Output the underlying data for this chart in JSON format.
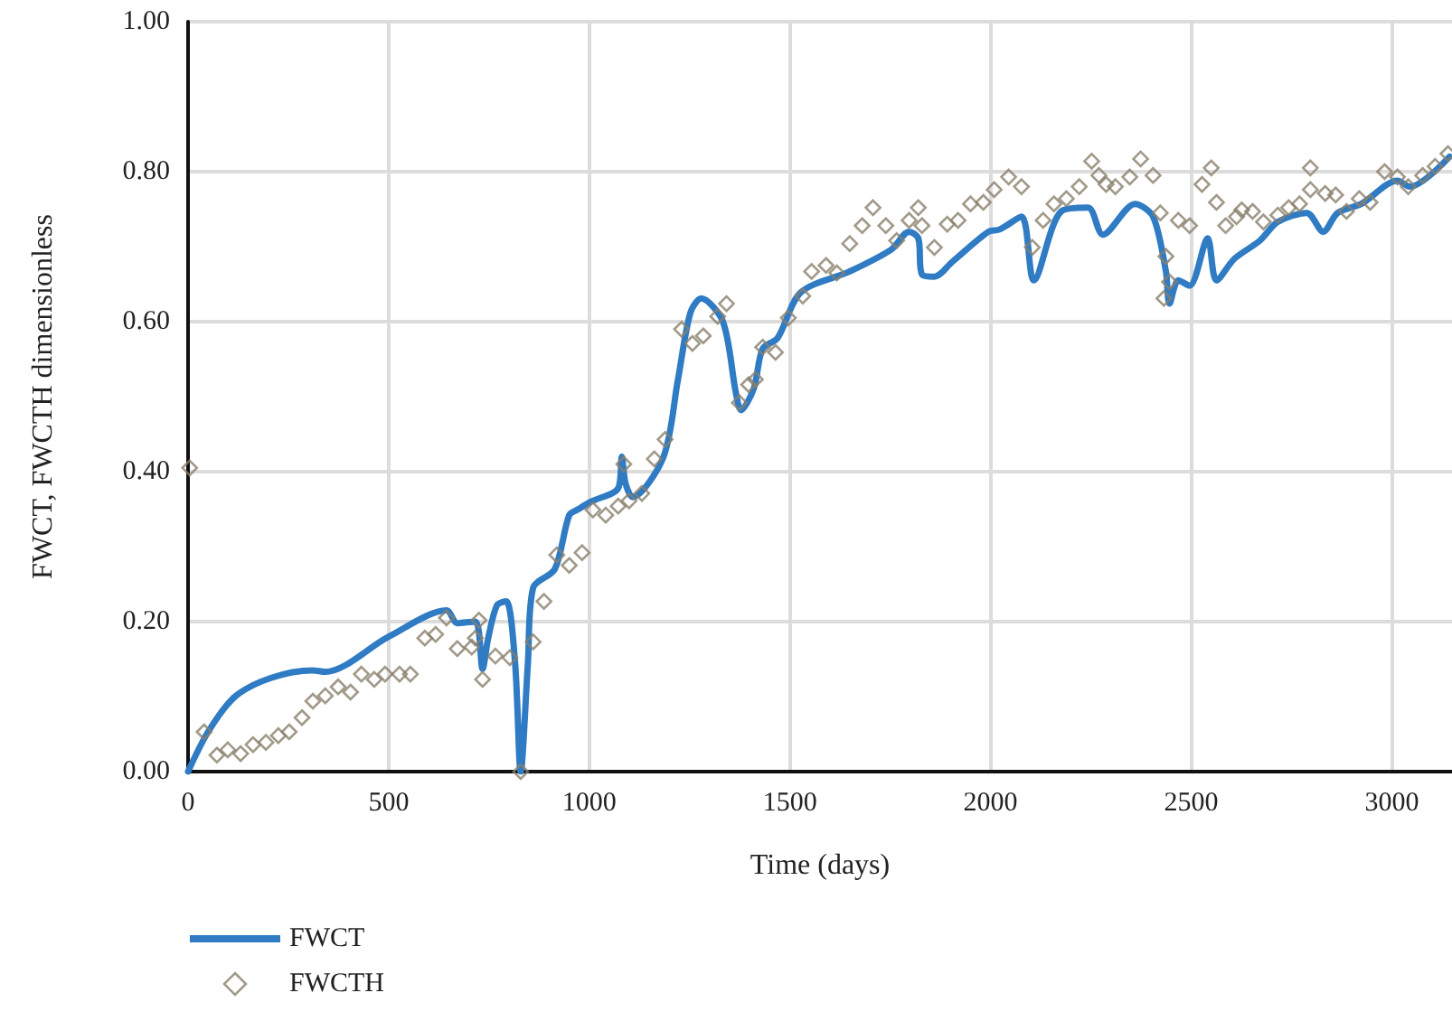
{
  "chart_data": {
    "type": "line",
    "xlabel": "Time (days)",
    "ylabel": "FWCT, FWCTH dimensionless",
    "xlim": [
      0,
      3150
    ],
    "xticks": [
      0,
      500,
      1000,
      1500,
      2000,
      2500,
      3000
    ],
    "ylim": [
      0,
      1
    ],
    "yticks": [
      {
        "value": 0,
        "label": "0.00"
      },
      {
        "value": 0.2,
        "label": "0.20"
      },
      {
        "value": 0.4,
        "label": "0.40"
      },
      {
        "value": 0.6,
        "label": "0.60"
      },
      {
        "value": 0.8,
        "label": "0.80"
      },
      {
        "value": 1,
        "label": "1.00"
      }
    ],
    "grid": true,
    "legend": "bottom left",
    "series": [
      {
        "name": "FWCT",
        "color": "#2f7bc4",
        "marker": "none",
        "line_style": "solid",
        "x": [
          0,
          50,
          117,
          207,
          310,
          342,
          500,
          644,
          671,
          716,
          734,
          748,
          770,
          793,
          815,
          829,
          847,
          860,
          914,
          950,
          973,
          1004,
          1072,
          1081,
          1090,
          1108,
          1185,
          1221,
          1252,
          1279,
          1333,
          1365,
          1378,
          1410,
          1432,
          1469,
          1527,
          1649,
          1752,
          1797,
          1820,
          1829,
          1860,
          1905,
          1995,
          2023,
          2077,
          2108,
          2176,
          2243,
          2280,
          2360,
          2405,
          2437,
          2446,
          2468,
          2496,
          2541,
          2563,
          2608,
          2671,
          2716,
          2788,
          2829,
          2865,
          2924,
          3014,
          3045,
          3144
        ],
        "values": [
          0,
          0.053,
          0.1,
          0.125,
          0.135,
          0.133,
          0.18,
          0.215,
          0.198,
          0.2,
          0.137,
          0.178,
          0.222,
          0.227,
          0.145,
          0,
          0.145,
          0.245,
          0.27,
          0.342,
          0.35,
          0.36,
          0.378,
          0.42,
          0.385,
          0.366,
          0.42,
          0.523,
          0.612,
          0.631,
          0.6,
          0.506,
          0.482,
          0.511,
          0.564,
          0.578,
          0.639,
          0.667,
          0.696,
          0.72,
          0.711,
          0.663,
          0.66,
          0.68,
          0.72,
          0.723,
          0.74,
          0.655,
          0.747,
          0.752,
          0.716,
          0.757,
          0.74,
          0.667,
          0.624,
          0.655,
          0.648,
          0.711,
          0.655,
          0.684,
          0.708,
          0.733,
          0.745,
          0.72,
          0.745,
          0.757,
          0.788,
          0.78,
          0.82
        ]
      },
      {
        "name": "FWCTH",
        "type": "scatter",
        "color": "#8a7f6c",
        "marker": "diamond",
        "x": [
          4,
          40,
          72,
          99,
          131,
          162,
          194,
          225,
          252,
          284,
          311,
          342,
          374,
          405,
          432,
          464,
          491,
          527,
          554,
          590,
          617,
          644,
          671,
          707,
          716,
          725,
          734,
          766,
          802,
          829,
          860,
          887,
          919,
          950,
          982,
          1009,
          1041,
          1072,
          1086,
          1099,
          1131,
          1162,
          1189,
          1230,
          1257,
          1284,
          1320,
          1342,
          1374,
          1397,
          1414,
          1432,
          1464,
          1496,
          1532,
          1554,
          1590,
          1617,
          1649,
          1680,
          1707,
          1739,
          1766,
          1797,
          1820,
          1829,
          1860,
          1892,
          1919,
          1950,
          1982,
          2009,
          2045,
          2077,
          2104,
          2131,
          2158,
          2189,
          2221,
          2252,
          2270,
          2288,
          2311,
          2347,
          2374,
          2405,
          2423,
          2437,
          2432,
          2446,
          2468,
          2496,
          2527,
          2550,
          2563,
          2586,
          2613,
          2626,
          2653,
          2680,
          2716,
          2743,
          2770,
          2797,
          2797,
          2834,
          2860,
          2887,
          2919,
          2946,
          2982,
          3014,
          3041,
          3077,
          3108,
          3140
        ],
        "values": [
          0.405,
          0.053,
          0.022,
          0.029,
          0.024,
          0.036,
          0.039,
          0.048,
          0.053,
          0.072,
          0.094,
          0.101,
          0.113,
          0.106,
          0.13,
          0.123,
          0.13,
          0.13,
          0.13,
          0.178,
          0.183,
          0.205,
          0.164,
          0.166,
          0.178,
          0.202,
          0.123,
          0.154,
          0.152,
          0,
          0.173,
          0.227,
          0.289,
          0.275,
          0.292,
          0.349,
          0.342,
          0.354,
          0.41,
          0.361,
          0.371,
          0.417,
          0.443,
          0.59,
          0.571,
          0.581,
          0.607,
          0.624,
          0.492,
          0.516,
          0.523,
          0.566,
          0.559,
          0.605,
          0.634,
          0.667,
          0.675,
          0.665,
          0.704,
          0.728,
          0.752,
          0.728,
          0.708,
          0.735,
          0.752,
          0.728,
          0.699,
          0.73,
          0.735,
          0.757,
          0.759,
          0.776,
          0.793,
          0.78,
          0.699,
          0.735,
          0.757,
          0.764,
          0.78,
          0.814,
          0.795,
          0.783,
          0.78,
          0.793,
          0.817,
          0.795,
          0.745,
          0.687,
          0.631,
          0.653,
          0.735,
          0.728,
          0.783,
          0.805,
          0.759,
          0.728,
          0.74,
          0.749,
          0.747,
          0.733,
          0.742,
          0.752,
          0.757,
          0.805,
          0.776,
          0.771,
          0.769,
          0.747,
          0.764,
          0.759,
          0.8,
          0.793,
          0.78,
          0.795,
          0.807,
          0.824
        ]
      }
    ]
  }
}
